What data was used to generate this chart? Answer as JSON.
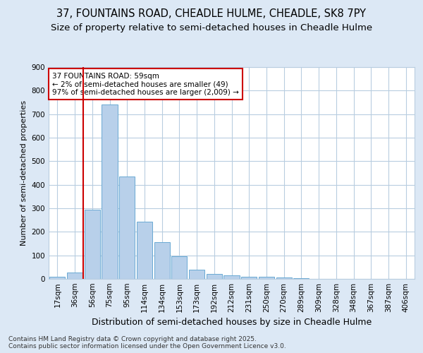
{
  "title1": "37, FOUNTAINS ROAD, CHEADLE HULME, CHEADLE, SK8 7PY",
  "title2": "Size of property relative to semi-detached houses in Cheadle Hulme",
  "xlabel": "Distribution of semi-detached houses by size in Cheadle Hulme",
  "ylabel": "Number of semi-detached properties",
  "footer1": "Contains HM Land Registry data © Crown copyright and database right 2025.",
  "footer2": "Contains public sector information licensed under the Open Government Licence v3.0.",
  "bar_labels": [
    "17sqm",
    "36sqm",
    "56sqm",
    "75sqm",
    "95sqm",
    "114sqm",
    "134sqm",
    "153sqm",
    "173sqm",
    "192sqm",
    "212sqm",
    "231sqm",
    "250sqm",
    "270sqm",
    "289sqm",
    "309sqm",
    "328sqm",
    "348sqm",
    "367sqm",
    "387sqm",
    "406sqm"
  ],
  "bar_values": [
    8,
    28,
    295,
    740,
    435,
    243,
    155,
    97,
    40,
    22,
    14,
    10,
    8,
    5,
    2,
    1,
    0,
    0,
    0,
    0,
    0
  ],
  "bar_color": "#b8d0ea",
  "bar_edge_color": "#6aaad4",
  "highlight_line_color": "#cc0000",
  "annotation_text": "37 FOUNTAINS ROAD: 59sqm\n← 2% of semi-detached houses are smaller (49)\n97% of semi-detached houses are larger (2,009) →",
  "annotation_box_color": "#cc0000",
  "ylim": [
    0,
    900
  ],
  "yticks": [
    0,
    100,
    200,
    300,
    400,
    500,
    600,
    700,
    800,
    900
  ],
  "background_color": "#dce8f5",
  "plot_background": "#ffffff",
  "grid_color": "#b8cde0",
  "title1_fontsize": 10.5,
  "title2_fontsize": 9.5,
  "xlabel_fontsize": 9,
  "ylabel_fontsize": 8,
  "tick_fontsize": 7.5,
  "footer_fontsize": 6.5,
  "annot_fontsize": 7.5
}
